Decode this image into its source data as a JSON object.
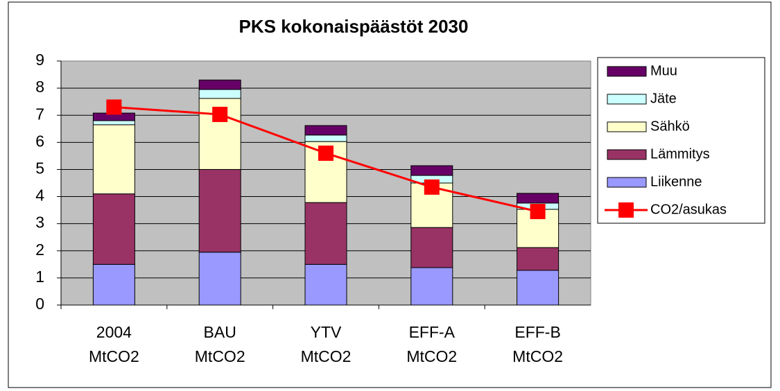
{
  "chart_data": {
    "type": "bar",
    "stacked": true,
    "title": "PKS kokonaispäästöt 2030",
    "categories": [
      "2004 MtCO2",
      "BAU MtCO2",
      "YTV MtCO2",
      "EFF-A MtCO2",
      "EFF-B MtCO2"
    ],
    "series": [
      {
        "name": "Liikenne",
        "color": "#9999ff",
        "values": [
          1.5,
          1.95,
          1.5,
          1.38,
          1.28
        ]
      },
      {
        "name": "Lämmitys",
        "color": "#993366",
        "values": [
          2.6,
          3.05,
          2.28,
          1.48,
          0.84
        ]
      },
      {
        "name": "Sähkö",
        "color": "#ffffcc",
        "values": [
          2.55,
          2.62,
          2.25,
          1.64,
          1.41
        ]
      },
      {
        "name": "Jäte",
        "color": "#ccffff",
        "values": [
          0.15,
          0.33,
          0.24,
          0.28,
          0.23
        ]
      },
      {
        "name": "Muu",
        "color": "#660066",
        "values": [
          0.28,
          0.35,
          0.35,
          0.36,
          0.36
        ]
      },
      {
        "name": "CO2/asukas",
        "type": "line",
        "color": "#ff0000",
        "values": [
          7.3,
          7.03,
          5.6,
          4.35,
          3.45
        ]
      }
    ],
    "ylim": [
      0,
      9
    ],
    "yticks": [
      0,
      1,
      2,
      3,
      4,
      5,
      6,
      7,
      8,
      9
    ],
    "grid": true,
    "legend": "right"
  }
}
